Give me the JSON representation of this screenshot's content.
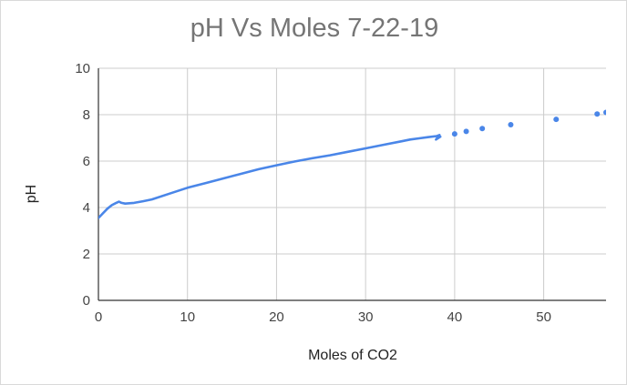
{
  "chart_data": {
    "type": "line",
    "title": "pH Vs Moles 7-22-19",
    "xlabel": "Moles of CO2",
    "ylabel": "pH",
    "xlim": [
      0,
      57
    ],
    "ylim": [
      0,
      10
    ],
    "xticks": [
      "0",
      "10",
      "20",
      "30",
      "40",
      "50"
    ],
    "yticks": [
      "0",
      "2",
      "4",
      "6",
      "8",
      "10"
    ],
    "grid": true,
    "color": "#4a86e8",
    "line": {
      "x": [
        0,
        0.5,
        1,
        1.5,
        2,
        2.3,
        2.6,
        3,
        4,
        5,
        6,
        8,
        10,
        12,
        14,
        16,
        18,
        20,
        22,
        24,
        26,
        28,
        30,
        32,
        34,
        35,
        36,
        37,
        38,
        38.3,
        37.9,
        38.4
      ],
      "y": [
        3.55,
        3.75,
        3.95,
        4.1,
        4.2,
        4.25,
        4.2,
        4.17,
        4.2,
        4.27,
        4.35,
        4.6,
        4.85,
        5.05,
        5.25,
        5.45,
        5.65,
        5.82,
        5.98,
        6.12,
        6.25,
        6.4,
        6.55,
        6.7,
        6.85,
        6.93,
        6.98,
        7.03,
        7.08,
        7.12,
        6.93,
        7.05
      ]
    },
    "points": {
      "x": [
        40,
        41.3,
        43.1,
        46.3,
        51.4,
        56,
        57
      ],
      "y": [
        7.17,
        7.28,
        7.4,
        7.57,
        7.8,
        8.03,
        8.1
      ]
    }
  }
}
